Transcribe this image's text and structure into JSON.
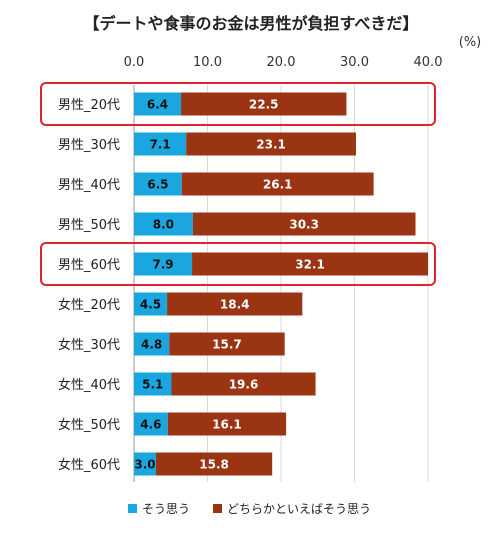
{
  "chart_data": {
    "type": "bar",
    "orientation": "horizontal",
    "stacked": true,
    "title": "【デートや食事のお金は男性が負担すべきだ】",
    "unit_label": "(%)",
    "xlim": [
      0,
      40
    ],
    "x_ticks": [
      "0.0",
      "10.0",
      "20.0",
      "30.0",
      "40.0"
    ],
    "grid": true,
    "legend_position": "bottom",
    "categories": [
      "男性_20代",
      "男性_30代",
      "男性_40代",
      "男性_50代",
      "男性_60代",
      "女性_20代",
      "女性_30代",
      "女性_40代",
      "女性_50代",
      "女性_60代"
    ],
    "highlighted_categories": [
      "男性_20代",
      "男性_60代"
    ],
    "series": [
      {
        "name": "そう思う",
        "color": "#1aa7e0",
        "values": [
          6.4,
          7.1,
          6.5,
          8.0,
          7.9,
          4.5,
          4.8,
          5.1,
          4.6,
          3.0
        ],
        "labels": [
          "6.4",
          "7.1",
          "6.5",
          "8.0",
          "7.9",
          "4.5",
          "4.8",
          "5.1",
          "4.6",
          "3.0"
        ]
      },
      {
        "name": "どちらかといえばそう思う",
        "color": "#9a3412",
        "values": [
          22.5,
          23.1,
          26.1,
          30.3,
          32.1,
          18.4,
          15.7,
          19.6,
          16.1,
          15.8
        ],
        "labels": [
          "22.5",
          "23.1",
          "26.1",
          "30.3",
          "32.1",
          "18.4",
          "15.7",
          "19.6",
          "16.1",
          "15.8"
        ]
      }
    ],
    "highlight_color": "#e0242c"
  }
}
